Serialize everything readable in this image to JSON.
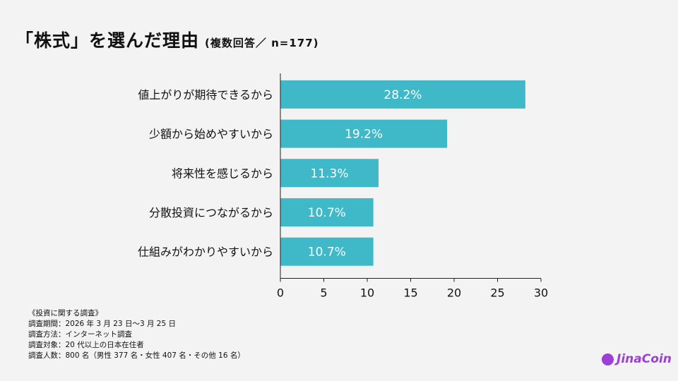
{
  "title": "「株式」を選んだ理由",
  "subtitle": "(複数回答／ n=177)",
  "chart_data": {
    "type": "bar",
    "orientation": "horizontal",
    "categories": [
      "値上がりが期待できるから",
      "少額から始めやすいから",
      "将来性を感じるから",
      "分散投資につながるから",
      "仕組みがわかりやすいから"
    ],
    "values": [
      28.2,
      19.2,
      11.3,
      10.7,
      10.7
    ],
    "data_labels": [
      "28.2%",
      "19.2%",
      "11.3%",
      "10.7%",
      "10.7%"
    ],
    "xlim": [
      0,
      30
    ],
    "xticks": [
      0,
      5,
      10,
      15,
      20,
      25,
      30
    ],
    "grid": false,
    "bar_color": "#3fb8c8",
    "label_color": "#ffffff"
  },
  "notes": [
    "《投資に関する調査》",
    "調査期間：2026 年 3 月 23 日～3 月 25 日",
    "調査方法：インターネット調査",
    "調査対象：20 代以上の日本在住者",
    "調査人数：800 名（男性 377 名・女性 407 名・その他 16 名）"
  ],
  "logo": {
    "text": "JinaCoin",
    "color": "#9b3fd6"
  }
}
